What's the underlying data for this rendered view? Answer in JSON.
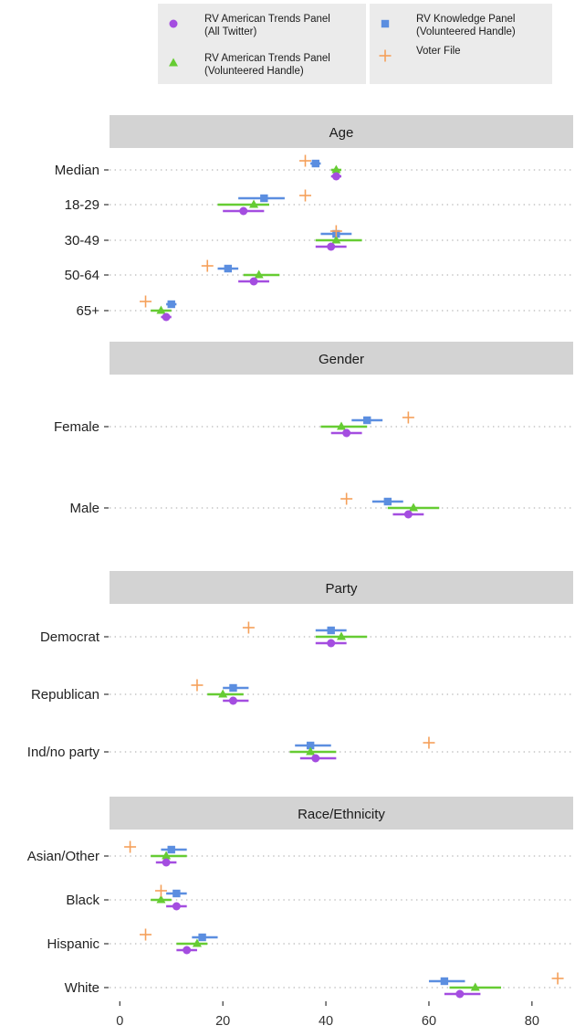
{
  "chart_data": {
    "type": "dot-range",
    "legend": {
      "position": "top",
      "entries": [
        {
          "key": "atp_all",
          "line1": "RV American Trends Panel",
          "line2": "(All Twitter)",
          "color": "#a44de0",
          "shape": "circle"
        },
        {
          "key": "atp_vol",
          "line1": "RV American Trends Panel",
          "line2": "(Volunteered Handle)",
          "color": "#66cc33",
          "shape": "triangle"
        },
        {
          "key": "kp_vol",
          "line1": "RV Knowledge Panel",
          "line2": "(Volunteered Handle)",
          "color": "#5b8ee0",
          "shape": "square"
        },
        {
          "key": "voter",
          "line1": "Voter File",
          "line2": "",
          "color": "#f5a05a",
          "shape": "plus"
        }
      ]
    },
    "x_axis": {
      "ticks": [
        0,
        20,
        40,
        60,
        80
      ],
      "range": [
        -2,
        88
      ]
    },
    "grid": "dotted horizontal",
    "panels": [
      {
        "title": "Age",
        "categories": [
          {
            "label": "Median",
            "atp_all": [
              42,
              41,
              43
            ],
            "atp_vol": [
              42,
              41,
              43
            ],
            "kp_vol": [
              38,
              37,
              39
            ],
            "voter": 36
          },
          {
            "label": "18-29",
            "atp_all": [
              24,
              20,
              28
            ],
            "atp_vol": [
              26,
              19,
              29
            ],
            "kp_vol": [
              28,
              23,
              32
            ],
            "voter": 36
          },
          {
            "label": "30-49",
            "atp_all": [
              41,
              38,
              44
            ],
            "atp_vol": [
              42,
              38,
              47
            ],
            "kp_vol": [
              42,
              39,
              45
            ],
            "voter": 42
          },
          {
            "label": "50-64",
            "atp_all": [
              26,
              23,
              29
            ],
            "atp_vol": [
              27,
              24,
              31
            ],
            "kp_vol": [
              21,
              19,
              23
            ],
            "voter": 17
          },
          {
            "label": "65+",
            "atp_all": [
              9,
              8,
              10
            ],
            "atp_vol": [
              8,
              6,
              10
            ],
            "kp_vol": [
              10,
              9,
              11
            ],
            "voter": 5
          }
        ]
      },
      {
        "title": "Gender",
        "categories": [
          {
            "label": "Female",
            "atp_all": [
              44,
              41,
              47
            ],
            "atp_vol": [
              43,
              39,
              48
            ],
            "kp_vol": [
              48,
              45,
              51
            ],
            "voter": 56
          },
          {
            "label": "Male",
            "atp_all": [
              56,
              53,
              59
            ],
            "atp_vol": [
              57,
              52,
              62
            ],
            "kp_vol": [
              52,
              49,
              55
            ],
            "voter": 44
          }
        ]
      },
      {
        "title": "Party",
        "categories": [
          {
            "label": "Democrat",
            "atp_all": [
              41,
              38,
              44
            ],
            "atp_vol": [
              43,
              38,
              48
            ],
            "kp_vol": [
              41,
              38,
              44
            ],
            "voter": 25
          },
          {
            "label": "Republican",
            "atp_all": [
              22,
              20,
              25
            ],
            "atp_vol": [
              20,
              17,
              24
            ],
            "kp_vol": [
              22,
              20,
              25
            ],
            "voter": 15
          },
          {
            "label": "Ind/no party",
            "atp_all": [
              38,
              35,
              42
            ],
            "atp_vol": [
              37,
              33,
              42
            ],
            "kp_vol": [
              37,
              34,
              41
            ],
            "voter": 60
          }
        ]
      },
      {
        "title": "Race/Ethnicity",
        "categories": [
          {
            "label": "Asian/Other",
            "atp_all": [
              9,
              7,
              11
            ],
            "atp_vol": [
              9,
              6,
              13
            ],
            "kp_vol": [
              10,
              8,
              13
            ],
            "voter": 2
          },
          {
            "label": "Black",
            "atp_all": [
              11,
              9,
              13
            ],
            "atp_vol": [
              8,
              6,
              10
            ],
            "kp_vol": [
              11,
              9,
              13
            ],
            "voter": 8
          },
          {
            "label": "Hispanic",
            "atp_all": [
              13,
              11,
              15
            ],
            "atp_vol": [
              15,
              11,
              17
            ],
            "kp_vol": [
              16,
              14,
              19
            ],
            "voter": 5
          },
          {
            "label": "White",
            "atp_all": [
              66,
              63,
              70
            ],
            "atp_vol": [
              69,
              64,
              74
            ],
            "kp_vol": [
              63,
              60,
              67
            ],
            "voter": 85
          }
        ]
      }
    ]
  }
}
